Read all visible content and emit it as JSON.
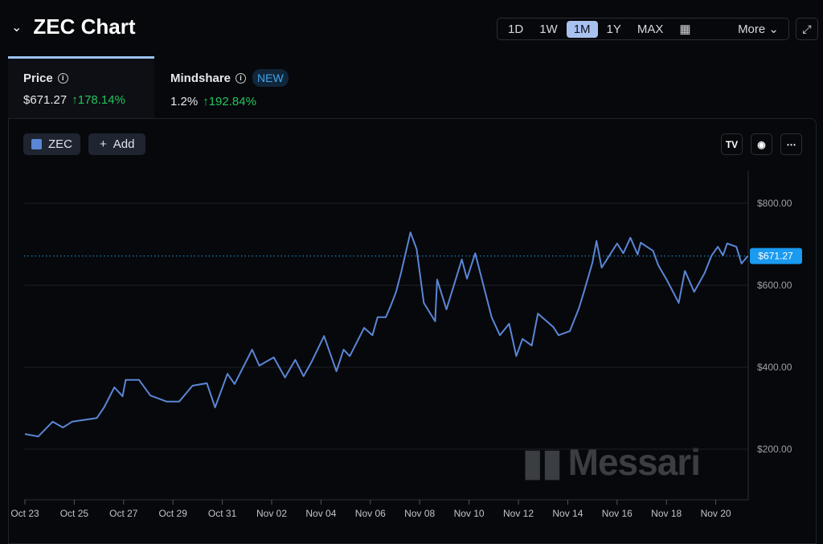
{
  "header": {
    "title": "ZEC Chart",
    "collapse_icon": "chevron-down-icon"
  },
  "range": {
    "options": [
      "1D",
      "1W",
      "1M",
      "1Y",
      "MAX"
    ],
    "selected": "1M",
    "calendar_icon": "calendar-icon",
    "more_label": "More",
    "expand_icon": "expand-icon"
  },
  "tabs": [
    {
      "label": "Price",
      "value": "$671.27",
      "change": "178.14%",
      "active": true
    },
    {
      "label": "Mindshare",
      "badge": "NEW",
      "value": "1.2%",
      "change": "192.84%"
    }
  ],
  "toolbar": {
    "series_label": "ZEC",
    "add_label": "Add",
    "tradingview_icon": "tradingview-icon",
    "camera_icon": "camera-icon",
    "more_icon": "more-icon"
  },
  "watermark": "Messari",
  "colors": {
    "line": "#5a86d6",
    "last_price": "#1a9af0",
    "up": "#22c55e",
    "volume_up": "#1f7a3a",
    "volume_down": "#8a2a22"
  },
  "chart_data": {
    "type": "line",
    "title": "",
    "series": [
      {
        "values": [
          [
            "Oct 23 00:00",
            237
          ],
          [
            "Oct 23 13:00",
            231
          ],
          [
            "Oct 24 03:00",
            267
          ],
          [
            "Oct 24 13:00",
            253
          ],
          [
            "Oct 24 22:00",
            267
          ],
          [
            "Oct 25 22:00",
            276
          ],
          [
            "Oct 26 05:00",
            302
          ],
          [
            "Oct 26 15:00",
            351
          ],
          [
            "Oct 26 23:00",
            329
          ],
          [
            "Oct 27 02:00",
            369
          ],
          [
            "Oct 27 15:00",
            369
          ],
          [
            "Oct 28 02:00",
            331
          ],
          [
            "Oct 28 18:00",
            316
          ],
          [
            "Oct 29 06:00",
            316
          ],
          [
            "Oct 29 19:00",
            355
          ],
          [
            "Oct 30 09:00",
            361
          ],
          [
            "Oct 30 17:00",
            302
          ],
          [
            "Oct 31 05:00",
            384
          ],
          [
            "Oct 31 12:00",
            359
          ],
          [
            "Nov 01 05:00",
            443
          ],
          [
            "Nov 01 12:00",
            404
          ],
          [
            "Nov 02 02:00",
            424
          ],
          [
            "Nov 02 13:00",
            375
          ],
          [
            "Nov 02 23:00",
            418
          ],
          [
            "Nov 03 07:00",
            378
          ],
          [
            "Nov 03 15:00",
            414
          ],
          [
            "Nov 04 03:00",
            476
          ],
          [
            "Nov 04 15:00",
            390
          ],
          [
            "Nov 04 22:00",
            443
          ],
          [
            "Nov 05 04:00",
            427
          ],
          [
            "Nov 05 18:00",
            496
          ],
          [
            "Nov 06 02:00",
            478
          ],
          [
            "Nov 06 07:00",
            522
          ],
          [
            "Nov 06 15:00",
            522
          ],
          [
            "Nov 06 20:00",
            551
          ],
          [
            "Nov 07 01:00",
            584
          ],
          [
            "Nov 07 06:00",
            632
          ],
          [
            "Nov 07 15:00",
            729
          ],
          [
            "Nov 07 21:00",
            688
          ],
          [
            "Nov 08 04:00",
            557
          ],
          [
            "Nov 08 15:00",
            512
          ],
          [
            "Nov 08 17:00",
            614
          ],
          [
            "Nov 09 02:00",
            541
          ],
          [
            "Nov 09 17:00",
            663
          ],
          [
            "Nov 09 22:00",
            616
          ],
          [
            "Nov 10 06:00",
            678
          ],
          [
            "Nov 10 22:00",
            522
          ],
          [
            "Nov 11 06:00",
            478
          ],
          [
            "Nov 11 15:00",
            506
          ],
          [
            "Nov 11 22:00",
            427
          ],
          [
            "Nov 12 04:00",
            469
          ],
          [
            "Nov 12 13:00",
            453
          ],
          [
            "Nov 12 19:00",
            531
          ],
          [
            "Nov 13 10:00",
            498
          ],
          [
            "Nov 13 15:00",
            478
          ],
          [
            "Nov 14 02:00",
            488
          ],
          [
            "Nov 14 11:00",
            545
          ],
          [
            "Nov 14 16:00",
            586
          ],
          [
            "Nov 15 00:00",
            655
          ],
          [
            "Nov 15 04:00",
            708
          ],
          [
            "Nov 15 09:00",
            643
          ],
          [
            "Nov 16 00:00",
            702
          ],
          [
            "Nov 16 06:00",
            678
          ],
          [
            "Nov 16 13:00",
            716
          ],
          [
            "Nov 16 20:00",
            675
          ],
          [
            "Nov 16 23:00",
            704
          ],
          [
            "Nov 17 11:00",
            684
          ],
          [
            "Nov 17 16:00",
            649
          ],
          [
            "Nov 18 01:00",
            610
          ],
          [
            "Nov 18 12:00",
            557
          ],
          [
            "Nov 18 18:00",
            635
          ],
          [
            "Nov 19 03:00",
            584
          ],
          [
            "Nov 19 13:00",
            629
          ],
          [
            "Nov 19 20:00",
            673
          ],
          [
            "Nov 20 02:00",
            694
          ],
          [
            "Nov 20 07:00",
            673
          ],
          [
            "Nov 20 11:00",
            702
          ],
          [
            "Nov 20 20:00",
            694
          ],
          [
            "Nov 21 01:00",
            653
          ],
          [
            "Nov 21 07:00",
            671.27
          ]
        ]
      }
    ],
    "last_value_label": "$671.27",
    "y_ticks": [
      "$800.00",
      "$600.00",
      "$400.00",
      "$200.00"
    ],
    "y_tick_values": [
      800,
      600,
      400,
      200
    ],
    "x_ticks": [
      "Oct 23",
      "Oct 25",
      "Oct 27",
      "Oct 29",
      "Oct 31",
      "Nov 02",
      "Nov 04",
      "Nov 06",
      "Nov 08",
      "Nov 10",
      "Nov 12",
      "Nov 14",
      "Nov 16",
      "Nov 18",
      "Nov 20"
    ],
    "x_range": [
      "Oct 23 00:00",
      "Nov 21 08:00"
    ],
    "ylim": [
      100,
      875
    ],
    "grid": true,
    "y_axis_side": "right"
  }
}
